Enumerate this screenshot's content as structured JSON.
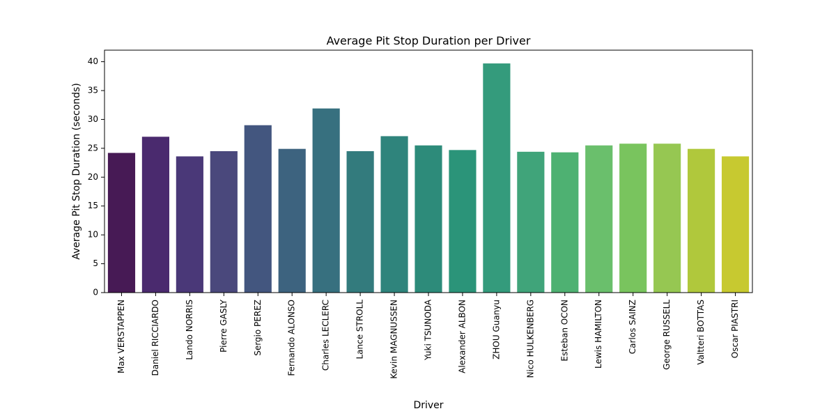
{
  "chart_data": {
    "type": "bar",
    "title": "Average Pit Stop Duration per Driver",
    "xlabel": "Driver",
    "ylabel": "Average Pit Stop Duration (seconds)",
    "ylim": [
      0,
      42
    ],
    "yticks": [
      0,
      5,
      10,
      15,
      20,
      25,
      30,
      35,
      40
    ],
    "grid": false,
    "categories": [
      "Max VERSTAPPEN",
      "Daniel RICCIARDO",
      "Lando NORRIS",
      "Pierre GASLY",
      "Sergio PEREZ",
      "Fernando ALONSO",
      "Charles LECLERC",
      "Lance STROLL",
      "Kevin MAGNUSSEN",
      "Yuki TSUNODA",
      "Alexander ALBON",
      "ZHOU Guanyu",
      "Nico HULKENBERG",
      "Esteban OCON",
      "Lewis HAMILTON",
      "Carlos SAINZ",
      "George RUSSELL",
      "Valtteri BOTTAS",
      "Oscar PIASTRI"
    ],
    "values": [
      24.2,
      27.0,
      23.6,
      24.5,
      29.0,
      24.9,
      31.9,
      24.5,
      27.1,
      25.5,
      24.7,
      39.7,
      24.4,
      24.3,
      25.5,
      25.8,
      25.8,
      24.9,
      23.6
    ],
    "colors": [
      "#471a55",
      "#4a2a6e",
      "#4a3878",
      "#4a487c",
      "#43567f",
      "#3d637f",
      "#37707f",
      "#337b7d",
      "#2f847c",
      "#2d8b7a",
      "#2b9479",
      "#349b7c",
      "#40a47a",
      "#4eb172",
      "#6abf6c",
      "#79c45e",
      "#96c752",
      "#b0c83c",
      "#c7c930"
    ]
  }
}
